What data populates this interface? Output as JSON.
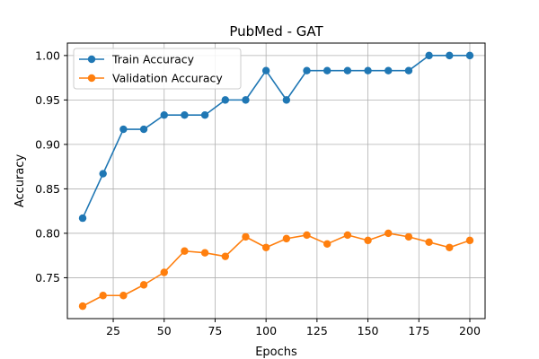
{
  "chart_data": {
    "type": "line",
    "title": "PubMed - GAT",
    "xlabel": "Epochs",
    "ylabel": "Accuracy",
    "xlim": [
      2.5,
      207.5
    ],
    "ylim": [
      0.704,
      1.014
    ],
    "xticks": [
      25,
      50,
      75,
      100,
      125,
      150,
      175,
      200
    ],
    "xtick_labels": [
      "25",
      "50",
      "75",
      "100",
      "125",
      "150",
      "175",
      "200"
    ],
    "yticks": [
      0.75,
      0.8,
      0.85,
      0.9,
      0.95,
      1.0
    ],
    "ytick_labels": [
      "0.75",
      "0.80",
      "0.85",
      "0.90",
      "0.95",
      "1.00"
    ],
    "grid": true,
    "legend_position": "top-left",
    "x": [
      10,
      20,
      30,
      40,
      50,
      60,
      70,
      80,
      90,
      100,
      110,
      120,
      130,
      140,
      150,
      160,
      170,
      180,
      190,
      200
    ],
    "series": [
      {
        "name": "Train Accuracy",
        "color": "#1f77b4",
        "marker": "circle",
        "values": [
          0.817,
          0.867,
          0.917,
          0.917,
          0.933,
          0.933,
          0.933,
          0.95,
          0.95,
          0.983,
          0.95,
          0.983,
          0.983,
          0.983,
          0.983,
          0.983,
          0.983,
          1.0,
          1.0,
          1.0
        ]
      },
      {
        "name": "Validation Accuracy",
        "color": "#ff7f0e",
        "marker": "circle",
        "values": [
          0.718,
          0.73,
          0.73,
          0.742,
          0.756,
          0.78,
          0.778,
          0.774,
          0.796,
          0.784,
          0.794,
          0.798,
          0.788,
          0.798,
          0.792,
          0.8,
          0.796,
          0.79,
          0.784,
          0.792
        ]
      }
    ]
  }
}
